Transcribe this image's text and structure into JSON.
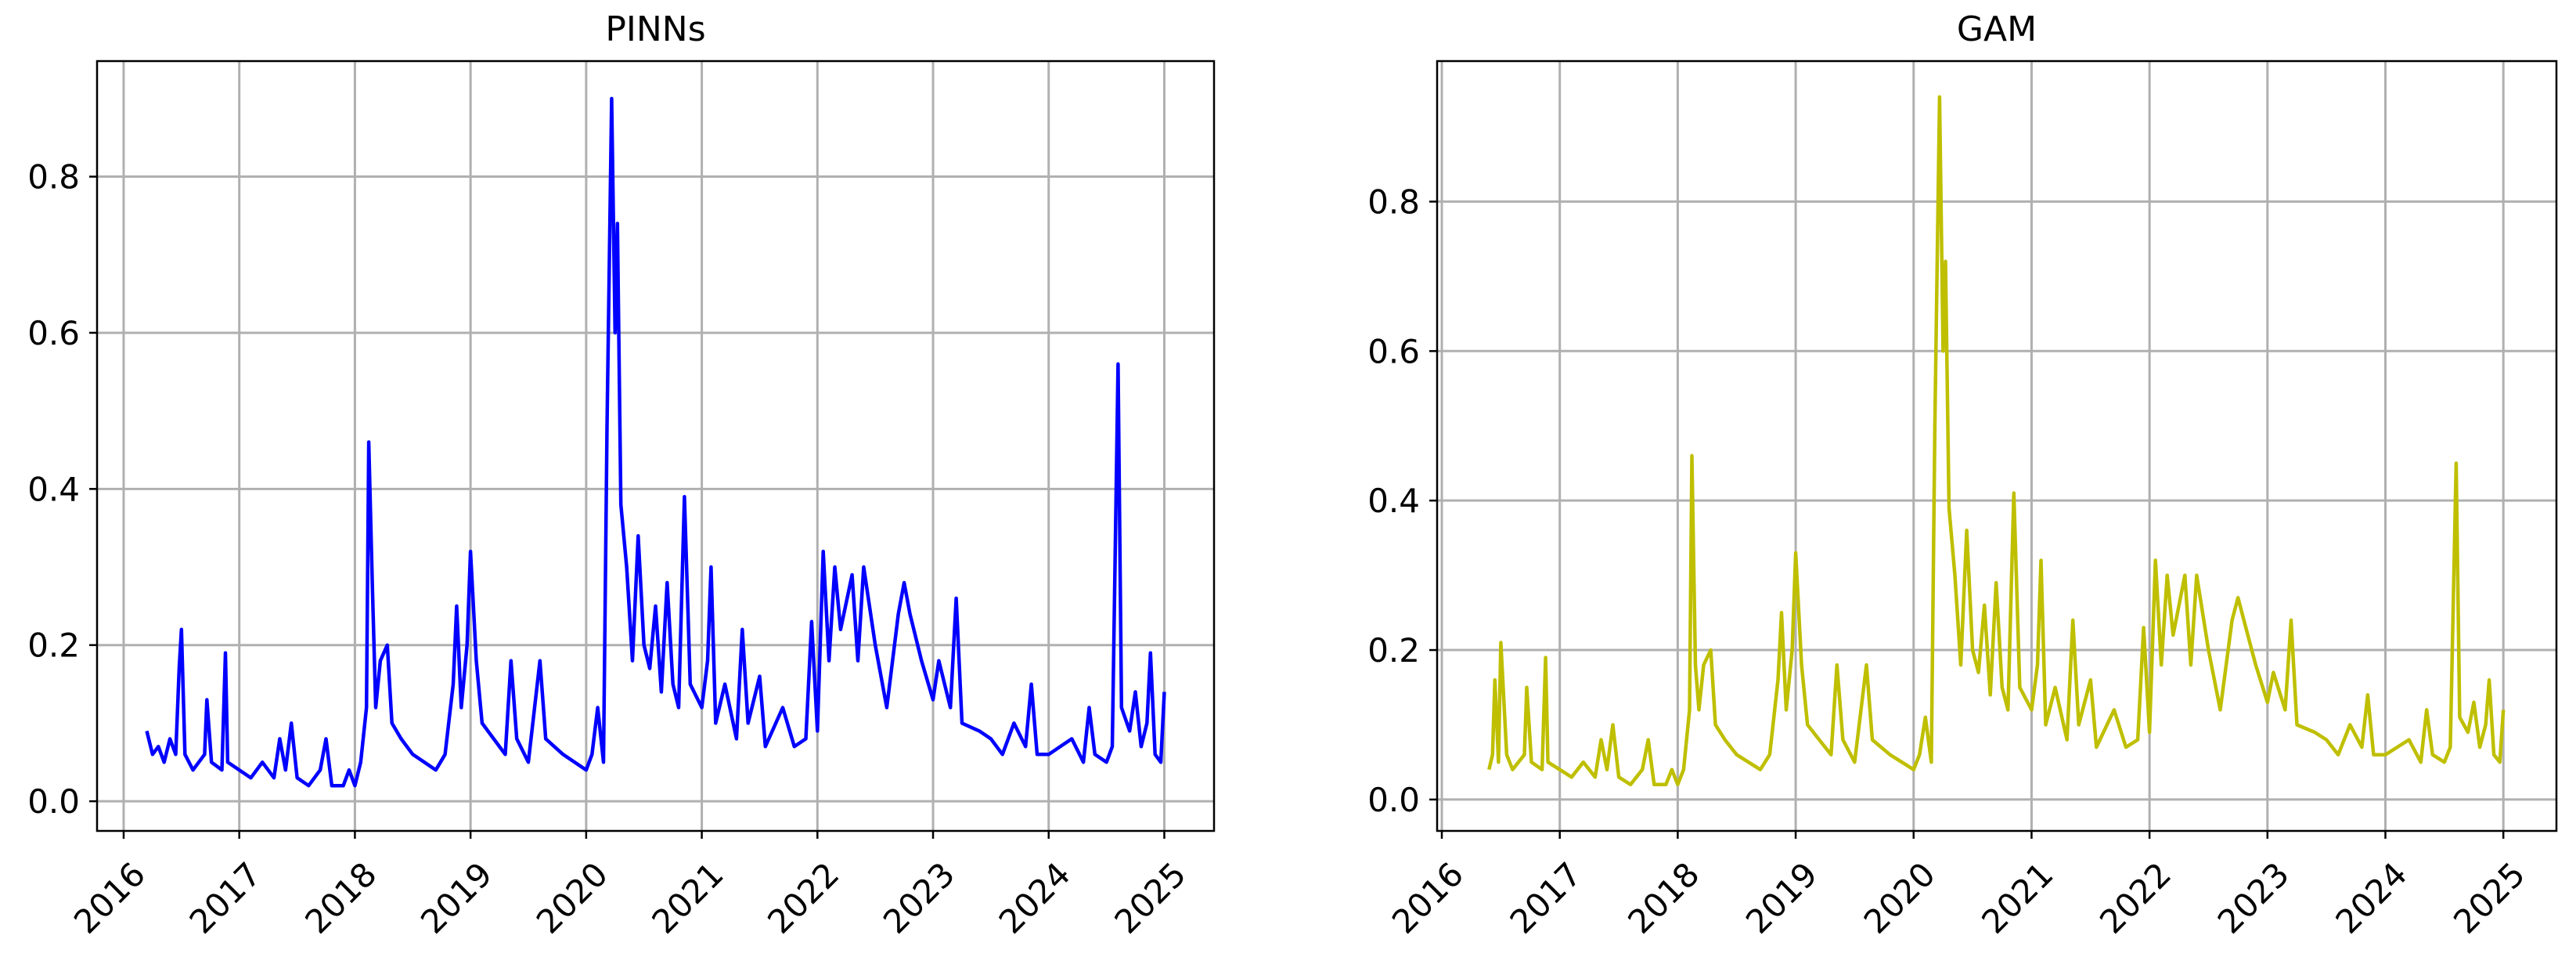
{
  "chart_data": [
    {
      "type": "line",
      "title": "PINNs",
      "color": "#0000ff",
      "grid": true,
      "xlim": [
        2015.77,
        2025.43
      ],
      "ylim": [
        -0.038,
        0.948
      ],
      "xticks": [
        2016,
        2017,
        2018,
        2019,
        2020,
        2021,
        2022,
        2023,
        2024,
        2025
      ],
      "yticks": [
        {
          "value": 0,
          "label": "0.0"
        },
        0.2,
        0.4,
        0.6,
        0.8
      ],
      "x": [
        2016.2,
        2016.25,
        2016.3,
        2016.35,
        2016.4,
        2016.45,
        2016.48,
        2016.5,
        2016.53,
        2016.6,
        2016.7,
        2016.72,
        2016.76,
        2016.85,
        2016.88,
        2016.9,
        2017.0,
        2017.1,
        2017.2,
        2017.3,
        2017.35,
        2017.4,
        2017.45,
        2017.5,
        2017.6,
        2017.7,
        2017.75,
        2017.8,
        2017.9,
        2017.95,
        2018.0,
        2018.05,
        2018.1,
        2018.12,
        2018.15,
        2018.18,
        2018.22,
        2018.28,
        2018.32,
        2018.4,
        2018.5,
        2018.6,
        2018.7,
        2018.78,
        2018.85,
        2018.88,
        2018.92,
        2018.97,
        2019.0,
        2019.05,
        2019.1,
        2019.2,
        2019.3,
        2019.35,
        2019.4,
        2019.5,
        2019.6,
        2019.65,
        2019.8,
        2019.9,
        2020.0,
        2020.05,
        2020.1,
        2020.15,
        2020.18,
        2020.22,
        2020.25,
        2020.27,
        2020.3,
        2020.35,
        2020.4,
        2020.45,
        2020.5,
        2020.55,
        2020.6,
        2020.65,
        2020.7,
        2020.75,
        2020.8,
        2020.85,
        2020.9,
        2021.0,
        2021.05,
        2021.08,
        2021.12,
        2021.2,
        2021.3,
        2021.35,
        2021.4,
        2021.5,
        2021.55,
        2021.7,
        2021.8,
        2021.9,
        2021.95,
        2022.0,
        2022.05,
        2022.1,
        2022.15,
        2022.2,
        2022.3,
        2022.35,
        2022.4,
        2022.5,
        2022.6,
        2022.7,
        2022.75,
        2022.8,
        2022.9,
        2023.0,
        2023.05,
        2023.15,
        2023.2,
        2023.25,
        2023.4,
        2023.5,
        2023.6,
        2023.7,
        2023.8,
        2023.85,
        2023.9,
        2024.0,
        2024.1,
        2024.2,
        2024.3,
        2024.35,
        2024.4,
        2024.5,
        2024.55,
        2024.6,
        2024.63,
        2024.7,
        2024.75,
        2024.8,
        2024.85,
        2024.88,
        2024.92,
        2024.97,
        2025.0
      ],
      "values": [
        0.09,
        0.06,
        0.07,
        0.05,
        0.08,
        0.06,
        0.17,
        0.22,
        0.06,
        0.04,
        0.06,
        0.13,
        0.05,
        0.04,
        0.19,
        0.05,
        0.04,
        0.03,
        0.05,
        0.03,
        0.08,
        0.04,
        0.1,
        0.03,
        0.02,
        0.04,
        0.08,
        0.02,
        0.02,
        0.04,
        0.02,
        0.05,
        0.12,
        0.46,
        0.28,
        0.12,
        0.18,
        0.2,
        0.1,
        0.08,
        0.06,
        0.05,
        0.04,
        0.06,
        0.15,
        0.25,
        0.12,
        0.2,
        0.32,
        0.18,
        0.1,
        0.08,
        0.06,
        0.18,
        0.08,
        0.05,
        0.18,
        0.08,
        0.06,
        0.05,
        0.04,
        0.06,
        0.12,
        0.05,
        0.48,
        0.9,
        0.6,
        0.74,
        0.38,
        0.3,
        0.18,
        0.34,
        0.2,
        0.17,
        0.25,
        0.14,
        0.28,
        0.15,
        0.12,
        0.39,
        0.15,
        0.12,
        0.18,
        0.3,
        0.1,
        0.15,
        0.08,
        0.22,
        0.1,
        0.16,
        0.07,
        0.12,
        0.07,
        0.08,
        0.23,
        0.09,
        0.32,
        0.18,
        0.3,
        0.22,
        0.29,
        0.18,
        0.3,
        0.2,
        0.12,
        0.24,
        0.28,
        0.24,
        0.18,
        0.13,
        0.18,
        0.12,
        0.26,
        0.1,
        0.09,
        0.08,
        0.06,
        0.1,
        0.07,
        0.15,
        0.06,
        0.06,
        0.07,
        0.08,
        0.05,
        0.12,
        0.06,
        0.05,
        0.07,
        0.56,
        0.12,
        0.09,
        0.14,
        0.07,
        0.1,
        0.19,
        0.06,
        0.05,
        0.14
      ]
    },
    {
      "type": "line",
      "title": "GAM",
      "color": "#bfbf00",
      "grid": true,
      "xlim": [
        2015.96,
        2025.45
      ],
      "ylim": [
        -0.042,
        0.988
      ],
      "xticks": [
        2016,
        2017,
        2018,
        2019,
        2020,
        2021,
        2022,
        2023,
        2024,
        2025
      ],
      "yticks": [
        {
          "value": 0,
          "label": "0.0"
        },
        0.2,
        0.4,
        0.6,
        0.8
      ],
      "x": [
        2016.4,
        2016.43,
        2016.45,
        2016.48,
        2016.5,
        2016.55,
        2016.6,
        2016.7,
        2016.72,
        2016.76,
        2016.85,
        2016.88,
        2016.9,
        2017.0,
        2017.1,
        2017.2,
        2017.3,
        2017.35,
        2017.4,
        2017.45,
        2017.5,
        2017.6,
        2017.7,
        2017.75,
        2017.8,
        2017.9,
        2017.95,
        2018.0,
        2018.05,
        2018.1,
        2018.12,
        2018.15,
        2018.18,
        2018.22,
        2018.28,
        2018.32,
        2018.4,
        2018.5,
        2018.6,
        2018.7,
        2018.78,
        2018.85,
        2018.88,
        2018.92,
        2018.97,
        2019.0,
        2019.05,
        2019.1,
        2019.2,
        2019.3,
        2019.35,
        2019.4,
        2019.5,
        2019.6,
        2019.65,
        2019.8,
        2019.9,
        2020.0,
        2020.05,
        2020.1,
        2020.15,
        2020.18,
        2020.22,
        2020.25,
        2020.27,
        2020.3,
        2020.35,
        2020.4,
        2020.45,
        2020.5,
        2020.55,
        2020.6,
        2020.65,
        2020.7,
        2020.75,
        2020.8,
        2020.85,
        2020.9,
        2021.0,
        2021.05,
        2021.08,
        2021.12,
        2021.2,
        2021.3,
        2021.35,
        2021.4,
        2021.5,
        2021.55,
        2021.7,
        2021.8,
        2021.9,
        2021.95,
        2022.0,
        2022.05,
        2022.1,
        2022.15,
        2022.2,
        2022.3,
        2022.35,
        2022.4,
        2022.5,
        2022.6,
        2022.7,
        2022.75,
        2022.8,
        2022.9,
        2023.0,
        2023.05,
        2023.15,
        2023.2,
        2023.25,
        2023.4,
        2023.5,
        2023.6,
        2023.7,
        2023.8,
        2023.85,
        2023.9,
        2024.0,
        2024.1,
        2024.2,
        2024.3,
        2024.35,
        2024.4,
        2024.5,
        2024.55,
        2024.6,
        2024.63,
        2024.7,
        2024.75,
        2024.8,
        2024.85,
        2024.88,
        2024.92,
        2024.97,
        2025.0
      ],
      "values": [
        0.04,
        0.06,
        0.16,
        0.05,
        0.21,
        0.06,
        0.04,
        0.06,
        0.15,
        0.05,
        0.04,
        0.19,
        0.05,
        0.04,
        0.03,
        0.05,
        0.03,
        0.08,
        0.04,
        0.1,
        0.03,
        0.02,
        0.04,
        0.08,
        0.02,
        0.02,
        0.04,
        0.02,
        0.04,
        0.12,
        0.46,
        0.18,
        0.12,
        0.18,
        0.2,
        0.1,
        0.08,
        0.06,
        0.05,
        0.04,
        0.06,
        0.16,
        0.25,
        0.12,
        0.2,
        0.33,
        0.18,
        0.1,
        0.08,
        0.06,
        0.18,
        0.08,
        0.05,
        0.18,
        0.08,
        0.06,
        0.05,
        0.04,
        0.06,
        0.11,
        0.05,
        0.5,
        0.94,
        0.6,
        0.72,
        0.39,
        0.3,
        0.18,
        0.36,
        0.2,
        0.17,
        0.26,
        0.14,
        0.29,
        0.15,
        0.12,
        0.41,
        0.15,
        0.12,
        0.18,
        0.32,
        0.1,
        0.15,
        0.08,
        0.24,
        0.1,
        0.16,
        0.07,
        0.12,
        0.07,
        0.08,
        0.23,
        0.09,
        0.32,
        0.18,
        0.3,
        0.22,
        0.3,
        0.18,
        0.3,
        0.2,
        0.12,
        0.24,
        0.27,
        0.24,
        0.18,
        0.13,
        0.17,
        0.12,
        0.24,
        0.1,
        0.09,
        0.08,
        0.06,
        0.1,
        0.07,
        0.14,
        0.06,
        0.06,
        0.07,
        0.08,
        0.05,
        0.12,
        0.06,
        0.05,
        0.07,
        0.45,
        0.11,
        0.09,
        0.13,
        0.07,
        0.1,
        0.16,
        0.06,
        0.05,
        0.12
      ]
    }
  ]
}
